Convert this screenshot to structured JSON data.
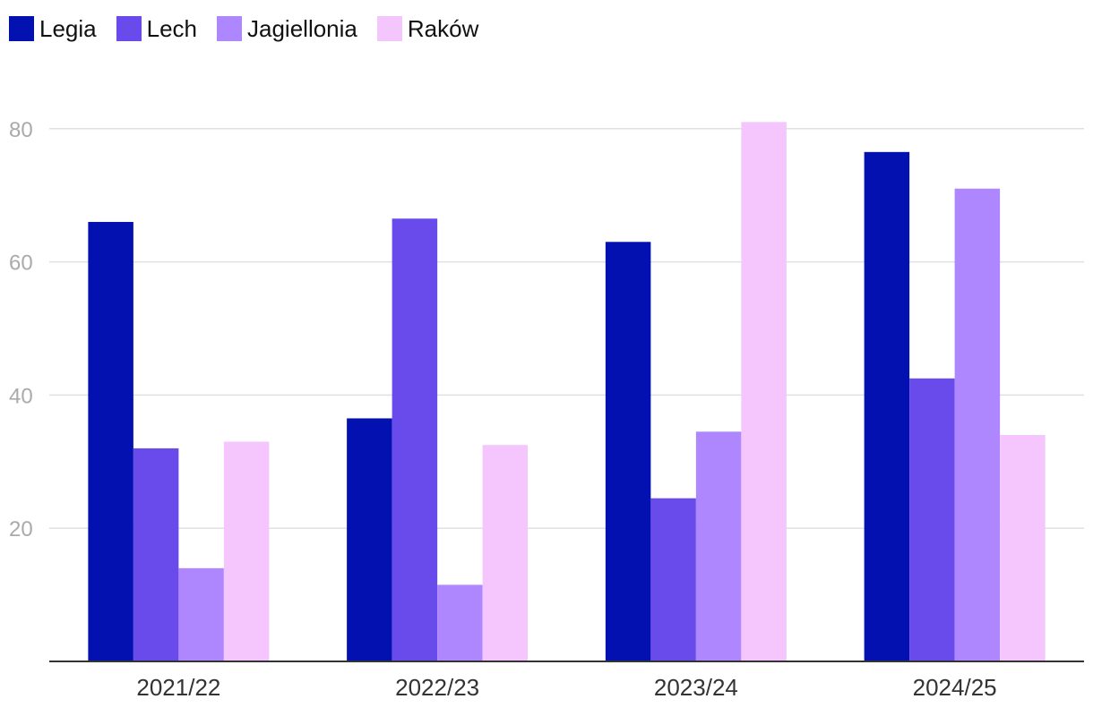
{
  "chart_data": {
    "type": "bar",
    "title": "",
    "xlabel": "",
    "ylabel": "",
    "categories": [
      "2021/22",
      "2022/23",
      "2023/24",
      "2024/25"
    ],
    "ylim": [
      0,
      80
    ],
    "yticks": [
      20,
      40,
      60,
      80
    ],
    "ytick_labels": [
      "20",
      "40",
      "60",
      "80"
    ],
    "grid": true,
    "legend_position": "top-left",
    "series": [
      {
        "name": "Legia",
        "color": "#0311b0",
        "values": [
          66,
          36.5,
          63,
          76.5
        ]
      },
      {
        "name": "Lech",
        "color": "#694aeb",
        "values": [
          32,
          66.5,
          24.5,
          42.5
        ]
      },
      {
        "name": "Jagiellonia",
        "color": "#ae86fe",
        "values": [
          14,
          11.5,
          34.5,
          71
        ]
      },
      {
        "name": "Raków",
        "color": "#f4c6fd",
        "values": [
          33,
          32.5,
          81,
          34
        ]
      }
    ]
  }
}
